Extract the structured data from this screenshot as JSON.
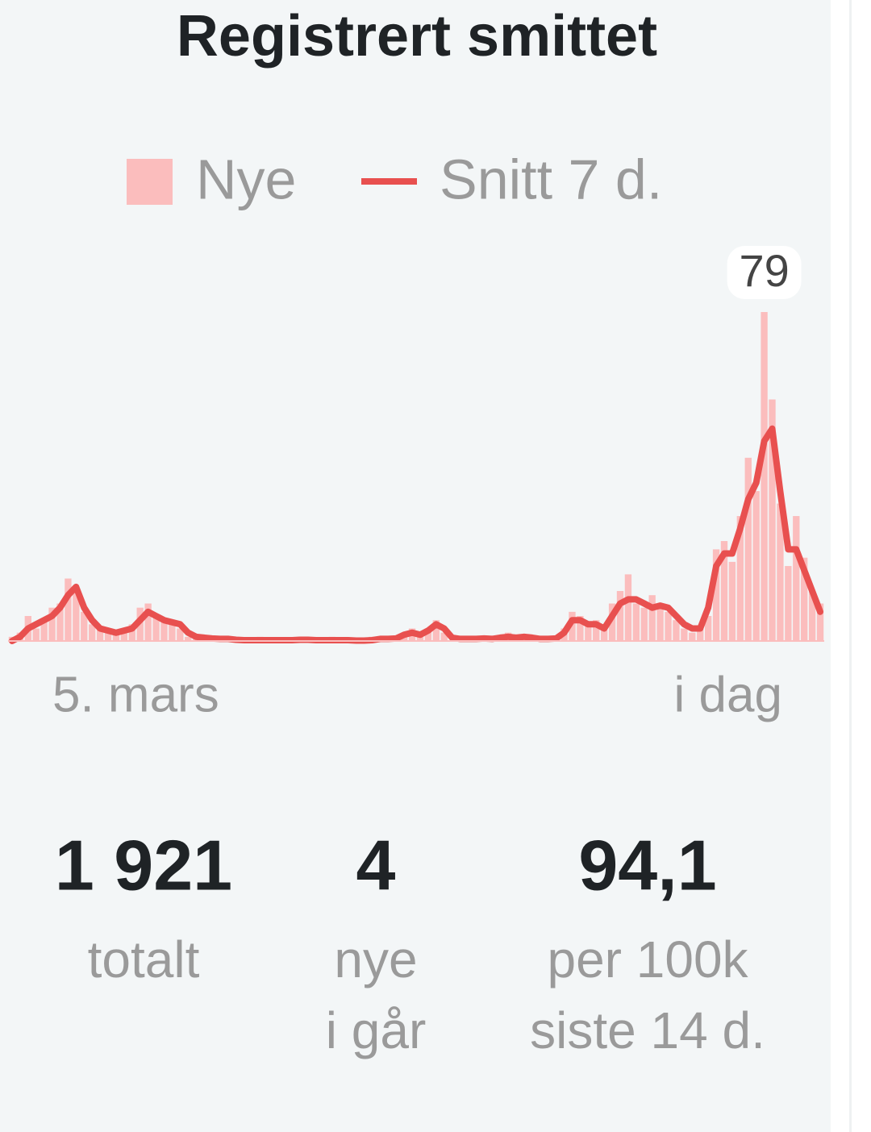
{
  "chart_data": {
    "type": "bar-line",
    "title": "Registrert smittet",
    "categories": [
      "5. mars",
      null,
      null,
      null,
      null,
      null,
      null,
      null,
      null,
      null,
      null,
      null,
      null,
      null,
      null,
      null,
      null,
      null,
      null,
      null,
      null,
      null,
      null,
      null,
      null,
      null,
      null,
      null,
      null,
      null,
      null,
      null,
      null,
      null,
      null,
      null,
      null,
      null,
      null,
      null,
      null,
      null,
      null,
      null,
      null,
      null,
      null,
      null,
      null,
      null,
      null,
      null,
      null,
      null,
      null,
      null,
      null,
      null,
      null,
      null,
      null,
      null,
      null,
      null,
      null,
      null,
      null,
      null,
      null,
      null,
      null,
      null,
      null,
      null,
      null,
      null,
      null,
      null,
      null,
      null,
      null,
      null,
      null,
      null,
      null,
      null,
      null,
      null,
      null,
      null,
      null,
      null,
      null,
      null,
      null,
      null,
      null,
      null,
      null,
      null,
      null,
      "i dag"
    ],
    "series": [
      {
        "name": "Nye",
        "kind": "bar",
        "color": "#fbbdbd",
        "values": [
          1,
          2,
          6,
          3,
          5,
          8,
          9,
          15,
          12,
          7,
          4,
          3,
          2,
          2,
          3,
          4,
          8,
          9,
          6,
          5,
          4,
          3,
          1,
          1,
          1,
          0,
          1,
          0,
          0,
          0,
          0,
          1,
          0,
          0,
          0,
          0,
          1,
          0,
          0,
          0,
          1,
          0,
          0,
          0,
          0,
          1,
          1,
          0,
          1,
          2,
          3,
          1,
          3,
          5,
          2,
          0,
          1,
          0,
          1,
          1,
          0,
          1,
          2,
          1,
          1,
          0,
          1,
          0,
          1,
          3,
          7,
          6,
          4,
          5,
          3,
          9,
          12,
          16,
          9,
          8,
          11,
          9,
          7,
          5,
          3,
          2,
          3,
          6,
          22,
          24,
          19,
          30,
          44,
          36,
          79,
          58,
          33,
          18,
          30,
          20,
          12,
          9
        ]
      },
      {
        "name": "Snitt 7 d.",
        "kind": "line",
        "color": "#e8504f",
        "values": [
          0,
          1,
          3,
          4,
          5,
          6,
          8,
          11,
          13,
          8,
          5,
          3,
          2.5,
          2,
          2.5,
          3,
          5,
          7,
          6,
          5,
          4.5,
          4,
          2,
          1,
          0.8,
          0.6,
          0.5,
          0.5,
          0.3,
          0.2,
          0.2,
          0.2,
          0.2,
          0.2,
          0.2,
          0.2,
          0.3,
          0.3,
          0.2,
          0.2,
          0.2,
          0.2,
          0.2,
          0.1,
          0.1,
          0.2,
          0.5,
          0.5,
          0.6,
          1.5,
          2,
          1.5,
          2.5,
          4,
          3,
          0.8,
          0.5,
          0.5,
          0.5,
          0.6,
          0.5,
          0.8,
          1,
          0.8,
          1,
          0.8,
          0.5,
          0.5,
          0.6,
          2,
          5,
          5,
          4,
          4,
          3,
          6,
          9,
          10,
          10,
          9,
          8,
          8.5,
          8,
          6,
          4,
          3,
          3,
          8,
          18,
          21,
          21,
          27,
          34,
          38,
          48,
          51,
          36,
          22,
          22,
          17,
          12,
          7
        ]
      }
    ],
    "ylim": [
      0,
      79
    ]
  },
  "stats": [
    {
      "value": "1 921",
      "label": [
        "totalt"
      ]
    },
    {
      "value": "4",
      "label": [
        "nye",
        "i går"
      ]
    },
    {
      "value": "94,1",
      "label": [
        "per 100k",
        "siste 14 d."
      ]
    }
  ]
}
